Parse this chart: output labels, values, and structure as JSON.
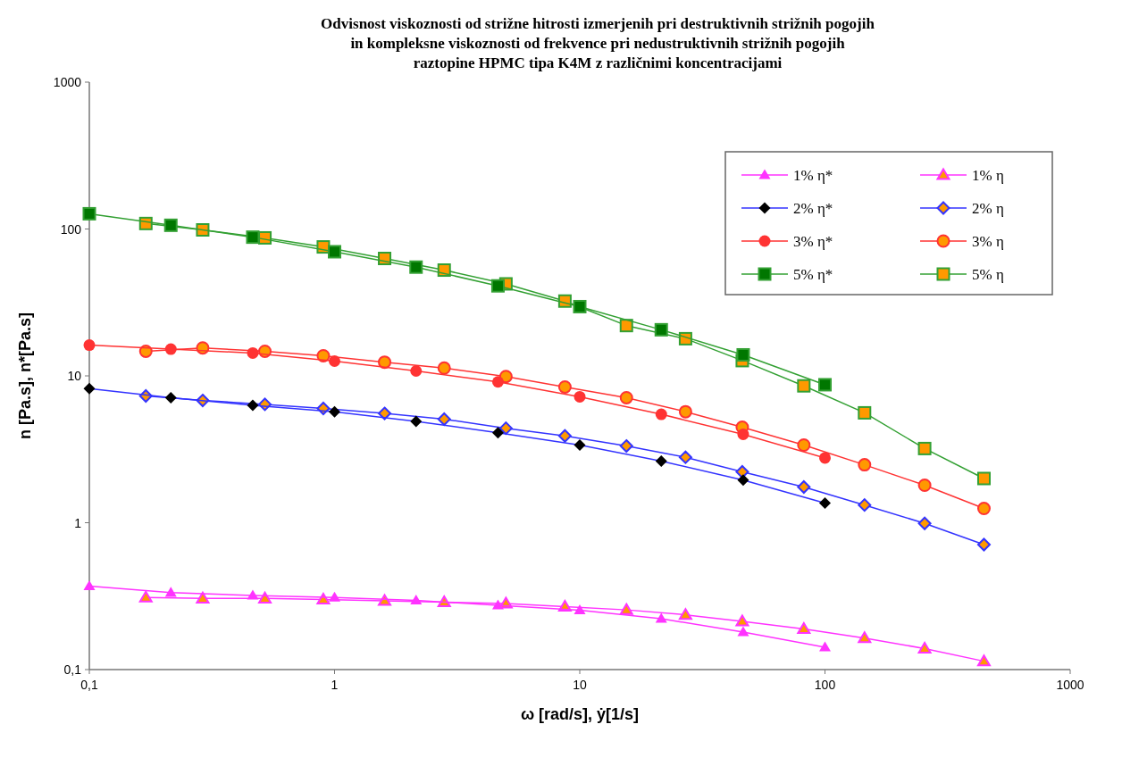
{
  "chart_data": {
    "type": "line",
    "title": "Odvisnost viskoznosti od strižne hitrosti izmerjenih pri destruktivnih strižnih pogojih\nin kompleksne viskoznosti od frekvence pri nedustruktivnih strižnih pogojih\nraztopine HPMC tipa K4M z različnimi koncentracijami",
    "xlabel": "ω [rad/s], ẏ[1/s]",
    "ylabel": "n [Pa.s], n*[Pa.s]",
    "log": "xy",
    "xlim": [
      0.1,
      1000
    ],
    "ylim": [
      0.1,
      1000
    ],
    "xticks": [
      {
        "value": 0.1,
        "label": "0,1"
      },
      1,
      10,
      100,
      1000
    ],
    "yticks": [
      {
        "value": 0.1,
        "label": "0,1"
      },
      1,
      10,
      100,
      1000
    ],
    "grid": false,
    "legend": "top right",
    "line_style": "solid",
    "series": [
      {
        "name": "1% η*",
        "color": "#ff33ff",
        "marker": "triangle",
        "x": [
          0.1,
          0.215,
          0.464,
          1,
          2.15,
          4.64,
          10,
          21.5,
          46.4,
          100
        ],
        "values": [
          0.37,
          0.334,
          0.32,
          0.31,
          0.296,
          0.274,
          0.254,
          0.222,
          0.18,
          0.142
        ]
      },
      {
        "name": "1% η",
        "color": "#ff33ff",
        "marker": "triangle",
        "colors": [
          "#ff9900",
          "#ff9900",
          "#ff9900",
          "#ff9900",
          "#ff9900",
          "#ff9900",
          "#ff9900",
          "#ff9900",
          "#ff9900",
          "#ff9900",
          "#ff9900",
          "#ff9900",
          "#ff9900",
          "#ff9900",
          "#ff9900"
        ],
        "x": [
          0.17,
          0.29,
          0.52,
          0.9,
          1.6,
          2.8,
          5,
          8.7,
          15.5,
          27,
          46,
          82,
          145,
          255,
          445
        ],
        "values": [
          0.31,
          0.305,
          0.305,
          0.3,
          0.294,
          0.288,
          0.282,
          0.268,
          0.255,
          0.236,
          0.213,
          0.189,
          0.164,
          0.139,
          0.114
        ]
      },
      {
        "name": "2% η*",
        "color": "#3333ff",
        "marker": "diamond",
        "colors": [
          "#000000",
          "#000000",
          "#000000",
          "#000000",
          "#000000",
          "#000000",
          "#000000",
          "#000000",
          "#000000",
          "#000000"
        ],
        "x": [
          0.1,
          0.215,
          0.464,
          1,
          2.15,
          4.64,
          10,
          21.5,
          46.4,
          100
        ],
        "values": [
          8.2,
          7.1,
          6.3,
          5.7,
          4.9,
          4.1,
          3.38,
          2.63,
          1.95,
          1.36
        ]
      },
      {
        "name": "2% η",
        "color": "#3333ff",
        "marker": "diamond",
        "colors": [
          "#ff9900",
          "#ff9900",
          "#ff9900",
          "#ff9900",
          "#ff9900",
          "#ff9900",
          "#ff9900",
          "#ff9900",
          "#ff9900",
          "#ff9900",
          "#ff9900",
          "#ff9900",
          "#ff9900",
          "#ff9900",
          "#ff9900"
        ],
        "x": [
          0.17,
          0.29,
          0.52,
          0.9,
          1.6,
          2.8,
          5,
          8.7,
          15.5,
          27,
          46,
          82,
          145,
          255,
          445
        ],
        "values": [
          7.3,
          6.8,
          6.4,
          6.0,
          5.55,
          5.07,
          4.4,
          3.9,
          3.33,
          2.79,
          2.22,
          1.75,
          1.32,
          0.99,
          0.71
        ]
      },
      {
        "name": "3% η*",
        "color": "#ff3333",
        "marker": "circle",
        "x": [
          0.1,
          0.215,
          0.464,
          1,
          2.15,
          4.64,
          10,
          21.5,
          46.4,
          100
        ],
        "values": [
          16.2,
          15.2,
          14.3,
          12.6,
          10.8,
          9.1,
          7.2,
          5.47,
          4.0,
          2.76
        ]
      },
      {
        "name": "3% η",
        "color": "#ff3333",
        "marker": "circle",
        "colors": [
          "#ff9900",
          "#ff9900",
          "#ff9900",
          "#ff9900",
          "#ff9900",
          "#ff9900",
          "#ff9900",
          "#ff9900",
          "#ff9900",
          "#ff9900",
          "#ff9900",
          "#ff9900",
          "#ff9900",
          "#ff9900",
          "#ff9900"
        ],
        "x": [
          0.17,
          0.29,
          0.52,
          0.9,
          1.6,
          2.8,
          5,
          8.7,
          15.5,
          27,
          46,
          82,
          145,
          255,
          445
        ],
        "values": [
          14.7,
          15.5,
          14.7,
          13.7,
          12.4,
          11.3,
          9.9,
          8.4,
          7.1,
          5.7,
          4.47,
          3.38,
          2.48,
          1.8,
          1.25
        ]
      },
      {
        "name": "5% η*",
        "color": "#33a033",
        "marker": "square",
        "colors": [
          "#007700",
          "#007700",
          "#007700",
          "#007700",
          "#007700",
          "#007700",
          "#007700",
          "#007700",
          "#007700",
          "#007700"
        ],
        "x": [
          0.1,
          0.215,
          0.464,
          1,
          2.15,
          4.64,
          10,
          21.5,
          46.4,
          100
        ],
        "values": [
          127,
          106,
          88,
          70,
          55,
          41,
          29.6,
          20.6,
          13.9,
          8.7
        ]
      },
      {
        "name": "5% η",
        "color": "#33a033",
        "marker": "square",
        "colors": [
          "#ff9900",
          "#ff9900",
          "#ff9900",
          "#ff9900",
          "#ff9900",
          "#ff9900",
          "#ff9900",
          "#ff9900",
          "#ff9900",
          "#ff9900",
          "#ff9900",
          "#ff9900",
          "#ff9900",
          "#ff9900",
          "#ff9900"
        ],
        "x": [
          0.17,
          0.29,
          0.52,
          0.9,
          1.6,
          2.8,
          5,
          8.7,
          15.5,
          27,
          46,
          82,
          145,
          255,
          445
        ],
        "values": [
          109,
          98.6,
          87,
          75.5,
          63,
          52.5,
          42.3,
          32.3,
          22,
          17.9,
          12.7,
          8.55,
          5.6,
          3.2,
          2.0
        ]
      }
    ]
  }
}
